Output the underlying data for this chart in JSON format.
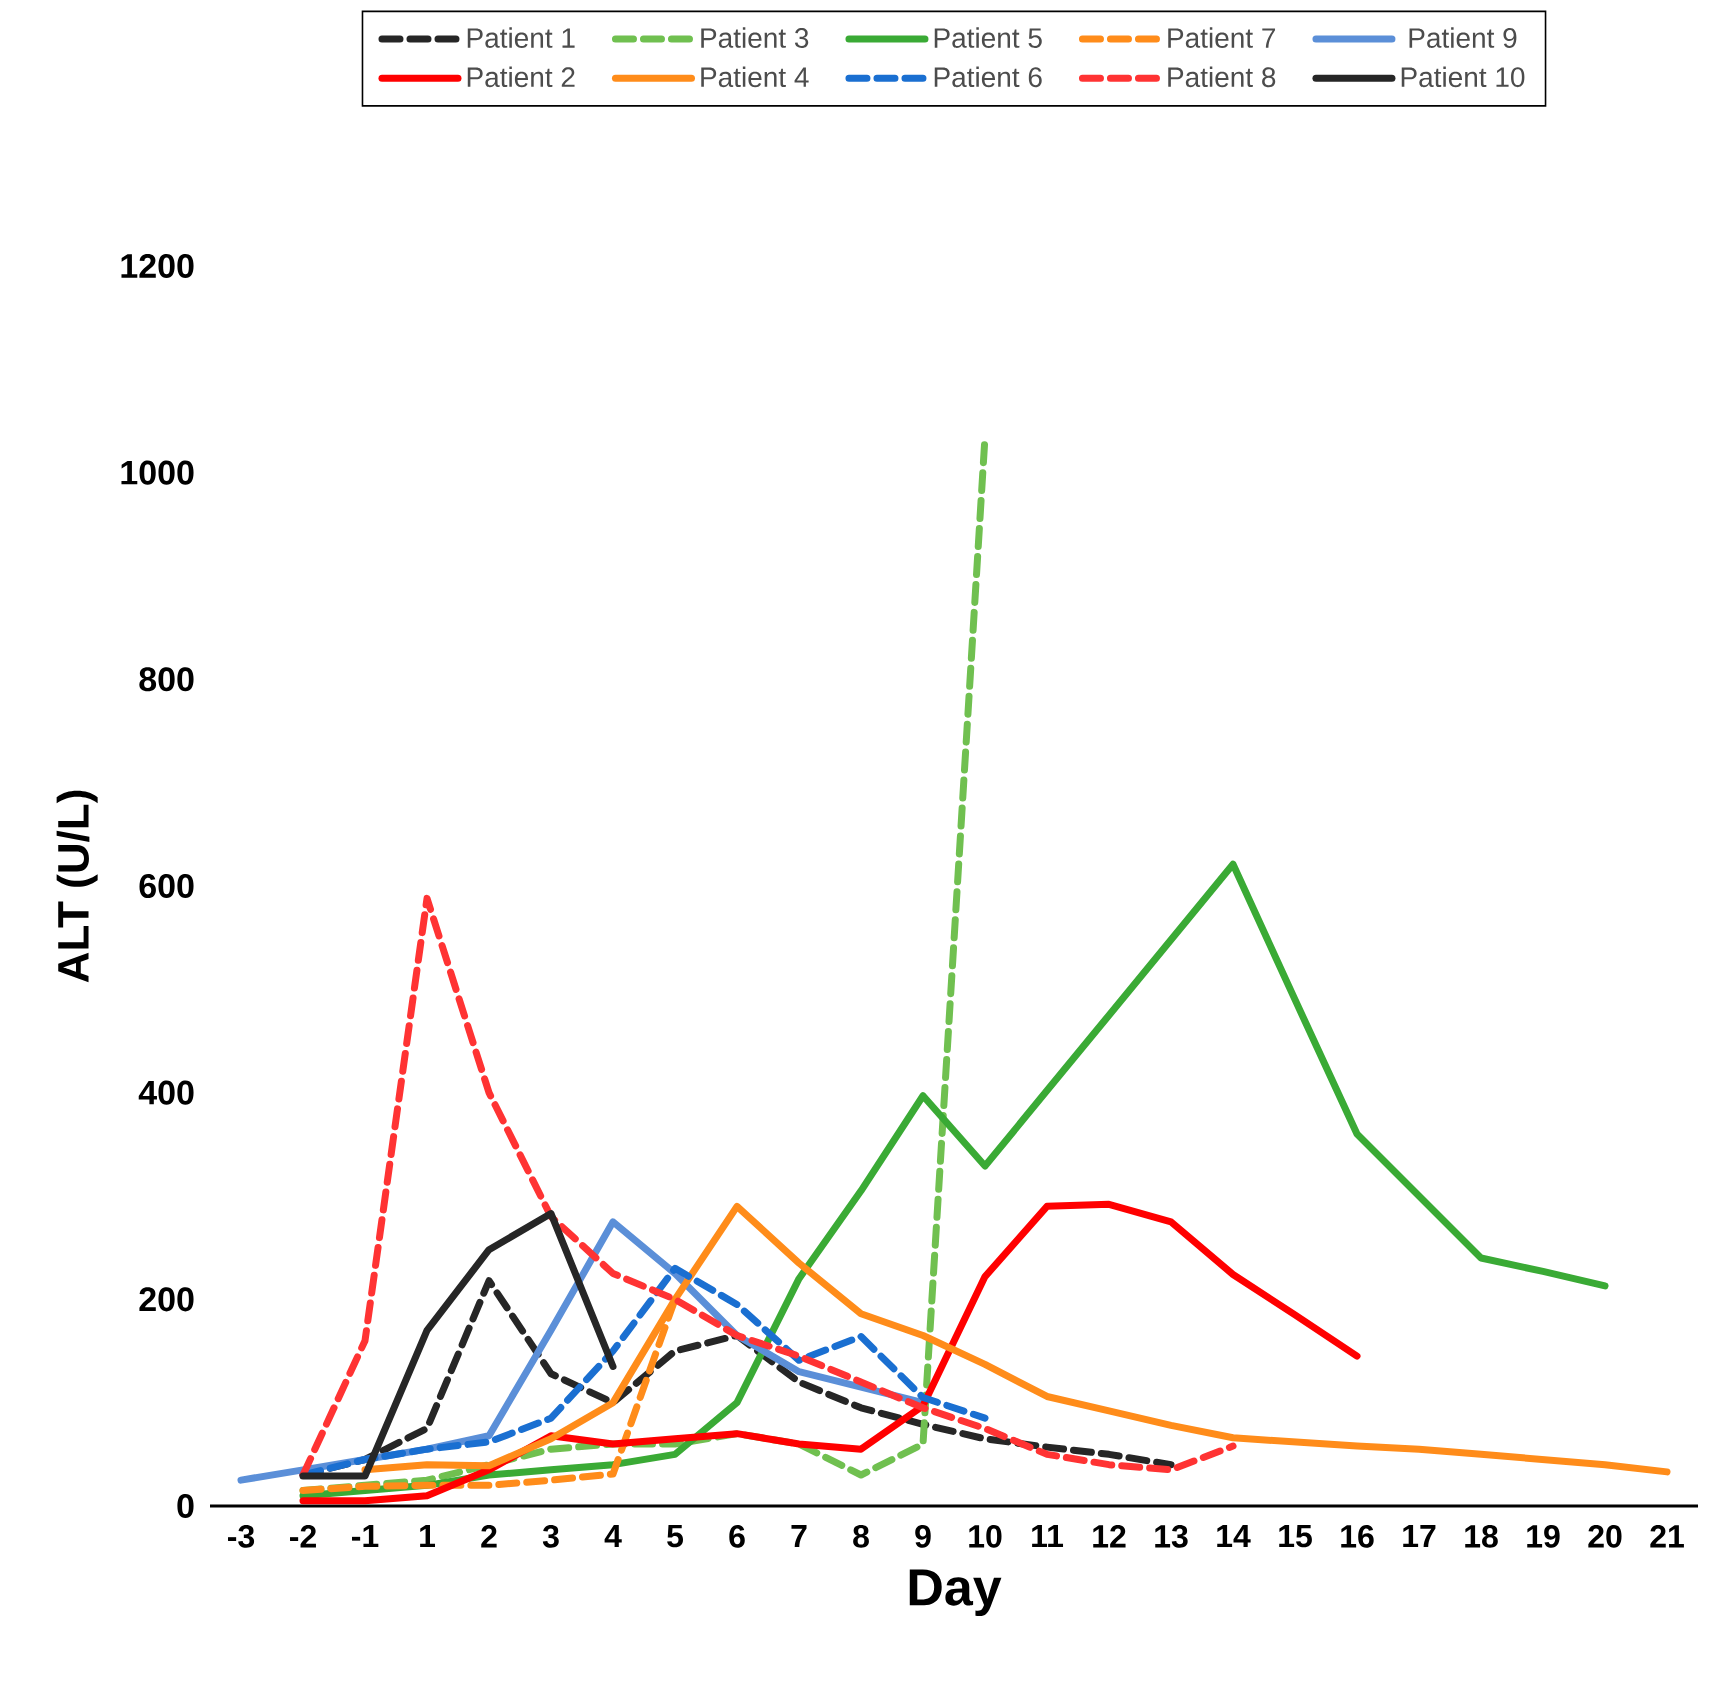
{
  "chart_data": {
    "type": "line",
    "xlabel": "Day",
    "ylabel": "ALT (U/L)",
    "categories": [
      "-3",
      "-2",
      "-1",
      "1",
      "2",
      "3",
      "4",
      "5",
      "6",
      "7",
      "8",
      "9",
      "10",
      "11",
      "12",
      "13",
      "14",
      "15",
      "16",
      "17",
      "18",
      "19",
      "20",
      "21"
    ],
    "ylim": [
      0,
      1200
    ],
    "yticks": [
      0,
      200,
      400,
      600,
      800,
      1000,
      1200
    ],
    "legend": "top",
    "series": [
      {
        "name": "Patient 1",
        "color": "#262626",
        "line_style": "dashed",
        "values": [
          null,
          30,
          45,
          75,
          218,
          128,
          100,
          150,
          165,
          120,
          95,
          79,
          65,
          57,
          50,
          40,
          null,
          null,
          null,
          null,
          null,
          null,
          null,
          null
        ]
      },
      {
        "name": "Patient 3",
        "color": "#70c050",
        "line_style": "dashed",
        "values": [
          null,
          15,
          20,
          25,
          40,
          55,
          60,
          60,
          70,
          60,
          30,
          60,
          1035,
          null,
          null,
          null,
          null,
          null,
          null,
          null,
          null,
          null,
          null,
          null
        ]
      },
      {
        "name": "Patient 5",
        "color": "#3aaa35",
        "line_style": "solid",
        "values": [
          null,
          10,
          15,
          20,
          30,
          35,
          40,
          50,
          100,
          220,
          305,
          397,
          329,
          402,
          475,
          548,
          621,
          490,
          360,
          300,
          240,
          227,
          213,
          null
        ]
      },
      {
        "name": "Patient 7",
        "color": "#ff8c1a",
        "line_style": "dashed",
        "values": [
          null,
          15,
          19,
          20,
          20,
          25,
          31,
          200,
          null,
          null,
          null,
          null,
          null,
          null,
          null,
          null,
          null,
          null,
          null,
          null,
          null,
          null,
          null,
          null
        ]
      },
      {
        "name": "Patient 9",
        "color": "#5b8fd8",
        "line_style": "solid",
        "values": [
          25,
          35,
          45,
          55,
          68,
          170,
          275,
          225,
          165,
          130,
          115,
          100,
          null,
          null,
          null,
          null,
          null,
          null,
          null,
          null,
          null,
          null,
          null,
          null
        ]
      },
      {
        "name": "Patient 2",
        "color": "#ff0000",
        "line_style": "solid",
        "values": [
          null,
          5,
          5,
          10,
          35,
          68,
          60,
          65,
          70,
          60,
          55,
          97,
          222,
          290,
          292,
          275,
          224,
          185,
          145,
          null,
          null,
          null,
          null,
          null
        ]
      },
      {
        "name": "Patient 4",
        "color": "#ff8c1a",
        "line_style": "solid",
        "values": [
          null,
          null,
          35,
          40,
          39,
          65,
          100,
          200,
          290,
          235,
          186,
          165,
          137,
          106,
          92,
          78,
          66,
          62,
          58,
          55,
          50,
          45,
          40,
          33
        ]
      },
      {
        "name": "Patient 6",
        "color": "#1a6fd1",
        "line_style": "dashed",
        "values": [
          null,
          30,
          45,
          55,
          62,
          85,
          150,
          230,
          195,
          141,
          164,
          105,
          85,
          null,
          null,
          null,
          null,
          null,
          null,
          null,
          null,
          null,
          null,
          null
        ]
      },
      {
        "name": "Patient 8",
        "color": "#ff3333",
        "line_style": "dashed",
        "values": [
          null,
          30,
          160,
          588,
          400,
          280,
          225,
          200,
          165,
          145,
          120,
          95,
          75,
          50,
          40,
          35,
          58,
          null,
          null,
          null,
          null,
          null,
          null,
          null
        ]
      },
      {
        "name": "Patient 10",
        "color": "#262626",
        "line_style": "solid",
        "values": [
          null,
          29,
          29,
          170,
          248,
          283,
          135,
          null,
          null,
          null,
          null,
          null,
          null,
          null,
          null,
          null,
          null,
          null,
          null,
          null,
          null,
          null,
          null,
          null
        ]
      }
    ]
  }
}
